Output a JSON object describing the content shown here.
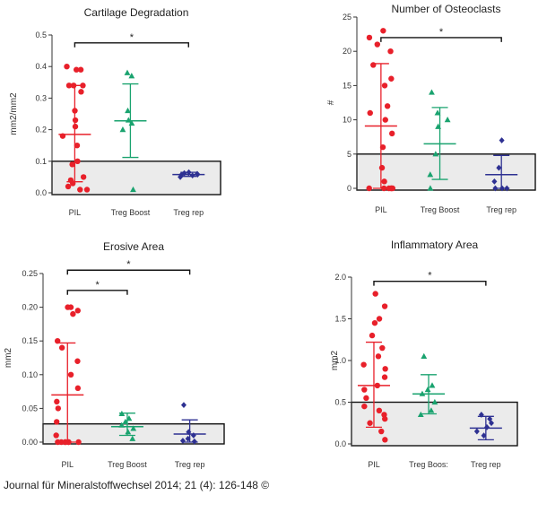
{
  "credit": "Journal für Mineralstoffwechsel 2014; 21 (4): 126-148 ©",
  "colors": {
    "pil": "#e8202a",
    "boost": "#1aa36f",
    "rep": "#2e3192",
    "shade": "#ebebeb"
  },
  "chart_data": [
    {
      "type": "scatter",
      "title": "Cartilage Degradation",
      "ylabel": "mm2/mm2",
      "ylim": [
        0,
        0.5
      ],
      "yticks": [
        "0.0",
        "0.1",
        "0.2",
        "0.3",
        "0.4",
        "0.5"
      ],
      "threshold": 0.1,
      "categories": [
        "PIL",
        "Treg Boost",
        "Treg rep"
      ],
      "significance": [
        {
          "from": 0,
          "to": 2,
          "label": "*",
          "y": 0.475
        }
      ],
      "series": [
        {
          "name": "PIL",
          "color": "#e8202a",
          "marker": "circle",
          "mean": 0.185,
          "sd_low": 0.035,
          "sd_high": 0.34,
          "values": [
            0.4,
            0.39,
            0.39,
            0.34,
            0.34,
            0.34,
            0.32,
            0.26,
            0.23,
            0.21,
            0.18,
            0.15,
            0.1,
            0.09,
            0.05,
            0.04,
            0.03,
            0.02,
            0.01,
            0.01
          ]
        },
        {
          "name": "Treg Boost",
          "color": "#1aa36f",
          "marker": "triangle",
          "mean": 0.228,
          "sd_low": 0.112,
          "sd_high": 0.345,
          "values": [
            0.38,
            0.37,
            0.26,
            0.23,
            0.22,
            0.2,
            0.01
          ]
        },
        {
          "name": "Treg rep",
          "color": "#2e3192",
          "marker": "diamond",
          "mean": 0.058,
          "sd_low": 0.052,
          "sd_high": 0.065,
          "values": [
            0.065,
            0.062,
            0.06,
            0.058,
            0.057,
            0.055,
            0.05
          ]
        }
      ]
    },
    {
      "type": "scatter",
      "title": "Number of Osteoclasts",
      "ylabel": "#",
      "ylim": [
        0,
        25
      ],
      "yticks": [
        "0",
        "5",
        "10",
        "15",
        "20",
        "25"
      ],
      "threshold": 5,
      "categories": [
        "PIL",
        "Treg Boost",
        "Treg rep"
      ],
      "significance": [
        {
          "from": 0,
          "to": 2,
          "label": "*",
          "y": 22
        }
      ],
      "series": [
        {
          "name": "PIL",
          "color": "#e8202a",
          "marker": "circle",
          "mean": 9.1,
          "sd_low": 0,
          "sd_high": 18.2,
          "values": [
            23,
            22,
            21,
            20,
            18,
            16,
            15,
            12,
            11,
            10,
            8,
            6,
            3,
            1,
            0,
            0,
            0,
            0,
            0,
            0
          ]
        },
        {
          "name": "Treg Boost",
          "color": "#1aa36f",
          "marker": "triangle",
          "mean": 6.5,
          "sd_low": 1.3,
          "sd_high": 11.8,
          "values": [
            14,
            11,
            10,
            9,
            5,
            2,
            0
          ]
        },
        {
          "name": "Treg rep",
          "color": "#2e3192",
          "marker": "diamond",
          "mean": 2.0,
          "sd_low": 0,
          "sd_high": 4.8,
          "values": [
            7,
            3,
            1,
            0,
            0,
            0
          ]
        }
      ]
    },
    {
      "type": "scatter",
      "title": "Erosive Area",
      "ylabel": "mm2",
      "ylim": [
        0,
        0.25
      ],
      "yticks": [
        "0.00",
        "0.05",
        "0.10",
        "0.15",
        "0.20",
        "0.25"
      ],
      "threshold": 0.027,
      "categories": [
        "PIL",
        "Treg Boost",
        "Treg rep"
      ],
      "significance": [
        {
          "from": 0,
          "to": 2,
          "label": "*",
          "y": 0.255
        },
        {
          "from": 0,
          "to": 1,
          "label": "*",
          "y": 0.225
        }
      ],
      "series": [
        {
          "name": "PIL",
          "color": "#e8202a",
          "marker": "circle",
          "mean": 0.07,
          "sd_low": 0,
          "sd_high": 0.147,
          "values": [
            0.2,
            0.2,
            0.195,
            0.19,
            0.15,
            0.14,
            0.12,
            0.1,
            0.08,
            0.06,
            0.05,
            0.03,
            0.01,
            0,
            0,
            0,
            0,
            0,
            0,
            0
          ]
        },
        {
          "name": "Treg Boost",
          "color": "#1aa36f",
          "marker": "triangle",
          "mean": 0.023,
          "sd_low": 0.01,
          "sd_high": 0.043,
          "values": [
            0.042,
            0.035,
            0.03,
            0.025,
            0.02,
            0.015,
            0.005
          ]
        },
        {
          "name": "Treg rep",
          "color": "#2e3192",
          "marker": "diamond",
          "mean": 0.012,
          "sd_low": 0,
          "sd_high": 0.033,
          "values": [
            0.055,
            0.015,
            0.01,
            0.005,
            0.002,
            0.001
          ]
        }
      ]
    },
    {
      "type": "scatter",
      "title": "Inflammatory Area",
      "ylabel": "mm2",
      "ylim": [
        0,
        2.0
      ],
      "yticks": [
        "0.0",
        "0.5",
        "1.0",
        "1.5",
        "2.0"
      ],
      "threshold": 0.5,
      "categories": [
        "PIL",
        "Treg Boos:",
        "Treg rep"
      ],
      "significance": [
        {
          "from": 0,
          "to": 2,
          "label": "*",
          "y": 1.95
        }
      ],
      "series": [
        {
          "name": "PIL",
          "color": "#e8202a",
          "marker": "circle",
          "mean": 0.7,
          "sd_low": 0.2,
          "sd_high": 1.22,
          "values": [
            1.8,
            1.65,
            1.5,
            1.45,
            1.3,
            1.15,
            1.05,
            0.95,
            0.9,
            0.8,
            0.7,
            0.65,
            0.55,
            0.45,
            0.4,
            0.35,
            0.3,
            0.25,
            0.15,
            0.05
          ]
        },
        {
          "name": "Treg Boos:",
          "color": "#1aa36f",
          "marker": "triangle",
          "mean": 0.6,
          "sd_low": 0.36,
          "sd_high": 0.83,
          "values": [
            1.05,
            0.7,
            0.65,
            0.6,
            0.5,
            0.4,
            0.35
          ]
        },
        {
          "name": "Treg rep",
          "color": "#2e3192",
          "marker": "diamond",
          "mean": 0.19,
          "sd_low": 0.05,
          "sd_high": 0.33,
          "values": [
            0.35,
            0.3,
            0.25,
            0.2,
            0.15,
            0.1
          ]
        }
      ]
    }
  ]
}
